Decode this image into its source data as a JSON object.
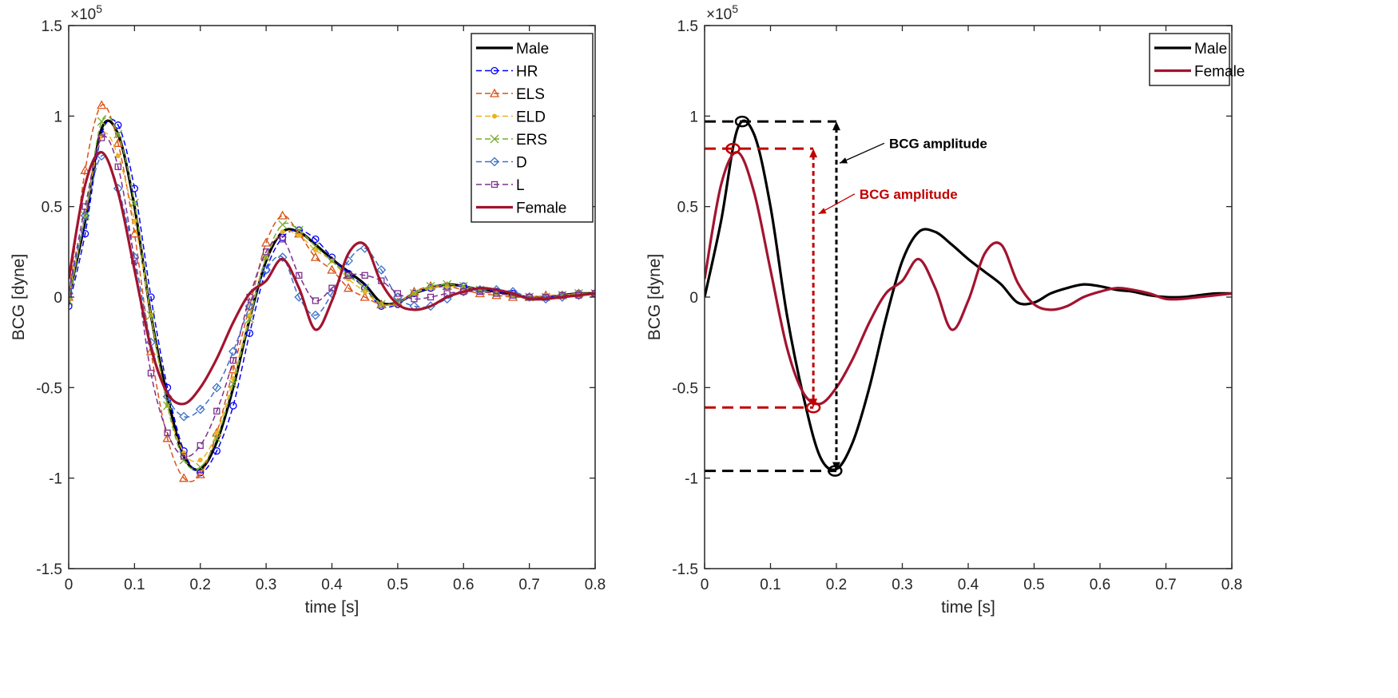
{
  "chart_data": [
    {
      "type": "line",
      "xlabel": "time [s]",
      "ylabel": "BCG [dyne]",
      "y_multiplier": "×10",
      "y_multiplier_exp": "5",
      "xlim": [
        0,
        0.8
      ],
      "ylim": [
        -1.5,
        1.5
      ],
      "xticks": [
        "0",
        "0.1",
        "0.2",
        "0.3",
        "0.4",
        "0.5",
        "0.6",
        "0.7",
        "0.8"
      ],
      "yticks": [
        "-1.5",
        "-1",
        "-0.5",
        "0",
        "0.5",
        "1",
        "1.5"
      ],
      "legend_position": "top-right",
      "x": [
        0,
        0.025,
        0.05,
        0.075,
        0.1,
        0.125,
        0.15,
        0.175,
        0.2,
        0.225,
        0.25,
        0.275,
        0.3,
        0.325,
        0.35,
        0.375,
        0.4,
        0.425,
        0.45,
        0.475,
        0.5,
        0.525,
        0.55,
        0.575,
        0.6,
        0.625,
        0.65,
        0.675,
        0.7,
        0.725,
        0.75,
        0.775,
        0.8
      ],
      "series": [
        {
          "name": "Male",
          "color": "#000000",
          "style": "solid",
          "marker": "none",
          "values": [
            0,
            0.42,
            0.93,
            0.9,
            0.5,
            -0.1,
            -0.55,
            -0.88,
            -0.95,
            -0.8,
            -0.5,
            -0.12,
            0.2,
            0.36,
            0.36,
            0.29,
            0.21,
            0.14,
            0.07,
            -0.03,
            -0.03,
            0.02,
            0.05,
            0.07,
            0.06,
            0.04,
            0.03,
            0.01,
            0,
            0,
            0.01,
            0.02,
            0.02
          ]
        },
        {
          "name": "HR",
          "color": "#0000ff",
          "style": "dashed",
          "marker": "circle",
          "values": [
            -0.05,
            0.35,
            0.9,
            0.95,
            0.6,
            0,
            -0.5,
            -0.85,
            -0.97,
            -0.85,
            -0.6,
            -0.2,
            0.15,
            0.33,
            0.37,
            0.32,
            0.22,
            0.13,
            0.05,
            -0.05,
            -0.04,
            0.02,
            0.05,
            0.06,
            0.06,
            0.04,
            0.03,
            0.02,
            0,
            0,
            0.01,
            0.02,
            0.02
          ]
        },
        {
          "name": "ELS",
          "color": "#d95319",
          "style": "dashed",
          "marker": "triangle",
          "values": [
            0,
            0.7,
            1.06,
            0.85,
            0.35,
            -0.3,
            -0.78,
            -1.0,
            -0.98,
            -0.75,
            -0.4,
            -0.05,
            0.3,
            0.45,
            0.35,
            0.22,
            0.15,
            0.05,
            0,
            -0.04,
            -0.03,
            0.03,
            0.06,
            0.06,
            0.04,
            0.02,
            0.01,
            0,
            0,
            0.01,
            0.01,
            0.02,
            0.02
          ]
        },
        {
          "name": "ELD",
          "color": "#edb120",
          "style": "dashed",
          "marker": "dot",
          "values": [
            0,
            0.45,
            0.89,
            0.78,
            0.42,
            -0.1,
            -0.6,
            -0.86,
            -0.9,
            -0.75,
            -0.45,
            -0.1,
            0.22,
            0.36,
            0.34,
            0.26,
            0.2,
            0.1,
            0.03,
            -0.04,
            -0.03,
            0.02,
            0.05,
            0.06,
            0.05,
            0.03,
            0.02,
            0.01,
            0,
            0.01,
            0.01,
            0.02,
            0.02
          ]
        },
        {
          "name": "ERS",
          "color": "#77ac30",
          "style": "dashed",
          "marker": "x",
          "values": [
            -0.02,
            0.45,
            0.97,
            0.9,
            0.52,
            -0.1,
            -0.6,
            -0.9,
            -0.94,
            -0.78,
            -0.48,
            -0.12,
            0.22,
            0.4,
            0.37,
            0.28,
            0.2,
            0.12,
            0.05,
            -0.04,
            -0.03,
            0.02,
            0.06,
            0.07,
            0.06,
            0.04,
            0.02,
            0.01,
            0,
            0,
            0.01,
            0.02,
            0.02
          ]
        },
        {
          "name": "D",
          "color": "#3c72c8",
          "style": "dashed",
          "marker": "diamond",
          "values": [
            0.02,
            0.45,
            0.78,
            0.6,
            0.22,
            -0.25,
            -0.55,
            -0.66,
            -0.62,
            -0.5,
            -0.3,
            -0.05,
            0.15,
            0.22,
            0,
            -0.1,
            0.02,
            0.2,
            0.27,
            0.15,
            0,
            -0.05,
            -0.05,
            -0.01,
            0.03,
            0.04,
            0.04,
            0.03,
            0,
            -0.01,
            0,
            0.01,
            0.02
          ]
        },
        {
          "name": "L",
          "color": "#7e2f8e",
          "style": "dashed",
          "marker": "square",
          "values": [
            0.03,
            0.5,
            0.88,
            0.72,
            0.2,
            -0.42,
            -0.75,
            -0.88,
            -0.82,
            -0.63,
            -0.35,
            0,
            0.25,
            0.32,
            0.12,
            -0.02,
            0.05,
            0.12,
            0.12,
            0.09,
            0.02,
            -0.01,
            0,
            0.02,
            0.03,
            0.03,
            0.02,
            0.01,
            0,
            0,
            0.01,
            0.01,
            0.02
          ]
        },
        {
          "name": "Female",
          "color": "#a2142f",
          "style": "solid",
          "marker": "none",
          "values": [
            0.1,
            0.62,
            0.8,
            0.58,
            0.15,
            -0.28,
            -0.53,
            -0.59,
            -0.5,
            -0.34,
            -0.14,
            0.02,
            0.09,
            0.21,
            0.05,
            -0.18,
            -0.02,
            0.24,
            0.29,
            0.08,
            -0.04,
            -0.07,
            -0.05,
            0,
            0.03,
            0.05,
            0.04,
            0.02,
            -0.01,
            -0.01,
            0,
            0.01,
            0.02
          ]
        }
      ]
    },
    {
      "type": "line",
      "xlabel": "time [s]",
      "ylabel": "BCG [dyne]",
      "y_multiplier": "×10",
      "y_multiplier_exp": "5",
      "xlim": [
        0,
        0.8
      ],
      "ylim": [
        -1.5,
        1.5
      ],
      "xticks": [
        "0",
        "0.1",
        "0.2",
        "0.3",
        "0.4",
        "0.5",
        "0.6",
        "0.7",
        "0.8"
      ],
      "yticks": [
        "-1.5",
        "-1",
        "-0.5",
        "0",
        "0.5",
        "1",
        "1.5"
      ],
      "legend_position": "top-right",
      "x": [
        0,
        0.025,
        0.05,
        0.075,
        0.1,
        0.125,
        0.15,
        0.175,
        0.2,
        0.225,
        0.25,
        0.275,
        0.3,
        0.325,
        0.35,
        0.375,
        0.4,
        0.425,
        0.45,
        0.475,
        0.5,
        0.525,
        0.55,
        0.575,
        0.6,
        0.625,
        0.65,
        0.675,
        0.7,
        0.725,
        0.75,
        0.775,
        0.8
      ],
      "series": [
        {
          "name": "Male",
          "color": "#000000",
          "style": "solid",
          "marker": "none",
          "values": [
            0,
            0.42,
            0.93,
            0.9,
            0.5,
            -0.1,
            -0.55,
            -0.88,
            -0.95,
            -0.8,
            -0.5,
            -0.12,
            0.2,
            0.36,
            0.36,
            0.29,
            0.21,
            0.14,
            0.07,
            -0.03,
            -0.03,
            0.02,
            0.05,
            0.07,
            0.06,
            0.04,
            0.03,
            0.01,
            0,
            0,
            0.01,
            0.02,
            0.02
          ]
        },
        {
          "name": "Female",
          "color": "#a2142f",
          "style": "solid",
          "marker": "none",
          "values": [
            0.1,
            0.62,
            0.8,
            0.58,
            0.15,
            -0.28,
            -0.53,
            -0.59,
            -0.5,
            -0.34,
            -0.14,
            0.02,
            0.09,
            0.21,
            0.05,
            -0.18,
            -0.02,
            0.24,
            0.29,
            0.08,
            -0.04,
            -0.07,
            -0.05,
            0,
            0.03,
            0.05,
            0.04,
            0.02,
            -0.01,
            -0.01,
            0,
            0.01,
            0.02
          ]
        }
      ],
      "annotations": [
        {
          "label": "BCG amplitude",
          "color": "#000000",
          "peak": [
            0.057,
            0.97
          ],
          "trough": [
            0.198,
            -0.96
          ],
          "arrow_x": 0.2,
          "text_at": [
            0.28,
            0.85
          ],
          "pointer_to": [
            0.2,
            0.74
          ]
        },
        {
          "label": "BCG amplitude",
          "color": "#c00000",
          "peak": [
            0.043,
            0.82
          ],
          "trough": [
            0.165,
            -0.61
          ],
          "arrow_x": 0.165,
          "text_at": [
            0.235,
            0.57
          ],
          "pointer_to": [
            0.168,
            0.46
          ]
        }
      ]
    }
  ]
}
